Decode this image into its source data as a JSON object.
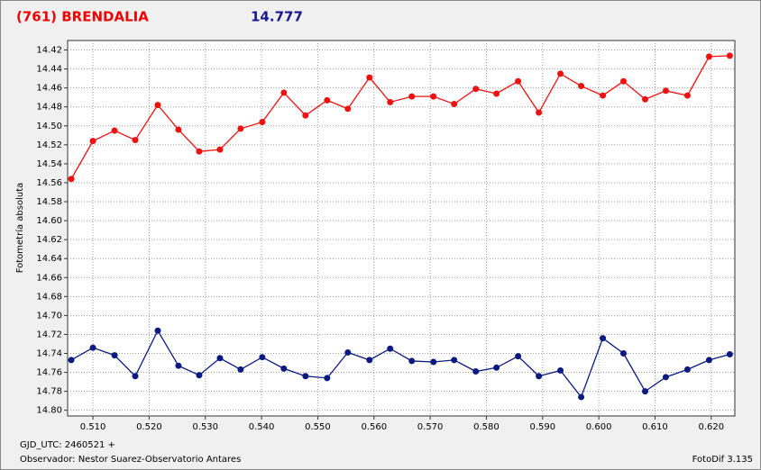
{
  "chart_data": {
    "type": "line",
    "title": "(761) BRENDALIA",
    "magnitude": 14.777,
    "ylabel": "Fotometría absoluta",
    "footer_left": [
      "GJD_UTC: 2460521 +",
      "Observador: Nestor Suarez-Observatorio Antares"
    ],
    "footer_right": "FotoDif 3.135",
    "x": [
      0.50615,
      0.51,
      0.51385,
      0.51753,
      0.52154,
      0.52522,
      0.52891,
      0.5326,
      0.53628,
      0.54013,
      0.54397,
      0.54782,
      0.55167,
      0.55535,
      0.5592,
      0.56288,
      0.56673,
      0.57058,
      0.57426,
      0.57811,
      0.58179,
      0.58564,
      0.58933,
      0.59317,
      0.59686,
      0.60071,
      0.60439,
      0.60824,
      0.61192,
      0.61577,
      0.61962,
      0.6233
    ],
    "series": [
      {
        "color": "#ee1111",
        "values": [
          14.556,
          14.516,
          14.505,
          14.515,
          14.478,
          14.504,
          14.527,
          14.525,
          14.503,
          14.496,
          14.465,
          14.489,
          14.473,
          14.482,
          14.449,
          14.475,
          14.469,
          14.469,
          14.477,
          14.461,
          14.466,
          14.453,
          14.486,
          14.445,
          14.458,
          14.468,
          14.453,
          14.472,
          14.463,
          14.468,
          14.427,
          14.426
        ]
      },
      {
        "color": "#0a1a80",
        "values": [
          14.747,
          14.734,
          14.742,
          14.764,
          14.716,
          14.753,
          14.763,
          14.745,
          14.757,
          14.744,
          14.756,
          14.764,
          14.766,
          14.739,
          14.747,
          14.735,
          14.748,
          14.749,
          14.747,
          14.759,
          14.755,
          14.743,
          14.764,
          14.758,
          14.786,
          14.724,
          14.74,
          14.78,
          14.765,
          14.757,
          14.747,
          14.741
        ]
      }
    ],
    "xlim": [
      0.5055,
      0.6242
    ],
    "xticks": [
      {
        "value": 0.51,
        "label": "0.510"
      },
      {
        "value": 0.52,
        "label": "0.520"
      },
      {
        "value": 0.53,
        "label": "0.530"
      },
      {
        "value": 0.54,
        "label": "0.540"
      },
      {
        "value": 0.55,
        "label": "0.550"
      },
      {
        "value": 0.56,
        "label": "0.560"
      },
      {
        "value": 0.57,
        "label": "0.570"
      },
      {
        "value": 0.58,
        "label": "0.580"
      },
      {
        "value": 0.59,
        "label": "0.590"
      },
      {
        "value": 0.6,
        "label": "0.600"
      },
      {
        "value": 0.61,
        "label": "0.610"
      },
      {
        "value": 0.62,
        "label": "0.620"
      }
    ],
    "ylim": [
      14.806,
      14.41
    ],
    "yticks": [
      14.42,
      14.44,
      14.46,
      14.48,
      {
        "value": 14.5,
        "label": "14.50"
      },
      14.52,
      14.54,
      14.56,
      14.58,
      {
        "value": 14.6,
        "label": "14.60"
      },
      14.62,
      14.64,
      14.66,
      14.68,
      {
        "value": 14.7,
        "label": "14.70"
      },
      14.72,
      14.74,
      14.76,
      14.78,
      {
        "value": 14.8,
        "label": "14.80"
      }
    ],
    "grid": true
  }
}
